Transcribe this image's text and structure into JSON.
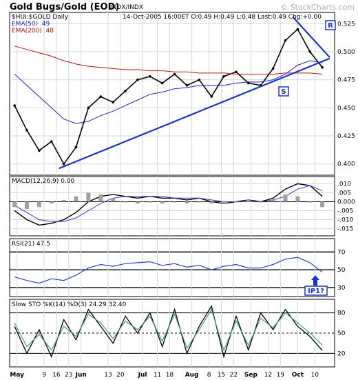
{
  "header": {
    "title": "Gold Bugs/Gold (EOD)",
    "exchange": "INDX/INDX",
    "watermark": "© StockCharts.com",
    "symbol": "$HUI:$GOLD Daily",
    "quote": "14-Oct-2005 16:00ET  O:0.49 H:0.49 L:0.48 Last:0.49 Chg:+0.00"
  },
  "colors": {
    "ema50": "#1f1fcc",
    "ema200": "#b01818",
    "trendline": "#1a33cc",
    "price": "#000000",
    "histogram": "#a0a0a0",
    "signal": "#2a3fd0",
    "sto_d": "#3a9a6a",
    "gridline": "#d8d8d8"
  },
  "annotations": {
    "resistance": "R",
    "support": "S",
    "ip1": "IP1?"
  },
  "chart_data": [
    {
      "type": "line",
      "panel": "price",
      "legend": [
        "EMA(50) .49",
        "EMA(200) .48"
      ],
      "ylim": [
        0.39,
        0.535
      ],
      "yticks": [
        "0.525",
        "0.500",
        "0.475",
        "0.450",
        "0.425",
        "0.400"
      ],
      "ytick_values": [
        0.525,
        0.5,
        0.475,
        0.45,
        0.425,
        0.4
      ],
      "x": [
        0,
        5,
        10,
        15,
        20,
        25,
        30,
        35,
        40,
        45,
        50,
        55,
        60,
        65,
        70,
        75,
        80,
        85,
        90,
        95,
        100,
        105,
        110,
        115,
        120,
        125
      ],
      "series": [
        {
          "name": "$HUI:$GOLD",
          "values": [
            0.452,
            0.43,
            0.412,
            0.42,
            0.4,
            0.415,
            0.45,
            0.46,
            0.455,
            0.465,
            0.475,
            0.478,
            0.472,
            0.48,
            0.47,
            0.475,
            0.46,
            0.478,
            0.482,
            0.472,
            0.47,
            0.485,
            0.51,
            0.52,
            0.5,
            0.486
          ]
        },
        {
          "name": "EMA(50)",
          "values": [
            0.48,
            0.47,
            0.46,
            0.45,
            0.44,
            0.436,
            0.438,
            0.443,
            0.447,
            0.452,
            0.457,
            0.462,
            0.464,
            0.467,
            0.468,
            0.47,
            0.47,
            0.47,
            0.472,
            0.473,
            0.473,
            0.475,
            0.48,
            0.488,
            0.492,
            0.49
          ]
        },
        {
          "name": "EMA(200)",
          "values": [
            0.505,
            0.502,
            0.499,
            0.496,
            0.492,
            0.489,
            0.487,
            0.486,
            0.485,
            0.484,
            0.484,
            0.483,
            0.483,
            0.482,
            0.482,
            0.481,
            0.481,
            0.481,
            0.48,
            0.48,
            0.48,
            0.48,
            0.481,
            0.481,
            0.481,
            0.48
          ]
        }
      ],
      "trendlines": [
        {
          "name": "support",
          "points": [
            [
              18,
              0.396
            ],
            [
              128,
              0.494
            ]
          ]
        },
        {
          "name": "resistance",
          "points": [
            [
              113,
              0.531
            ],
            [
              128,
              0.495
            ]
          ]
        }
      ]
    },
    {
      "type": "line",
      "panel": "macd",
      "legend": "MACD(12,26,9) 0.00",
      "ylim": [
        -0.019,
        0.014
      ],
      "yticks": [
        ".010",
        ".005",
        "0.000",
        "-.005",
        "-.010",
        "-.015"
      ],
      "ytick_values": [
        0.01,
        0.005,
        0.0,
        -0.005,
        -0.01,
        -0.015
      ],
      "x": [
        0,
        5,
        10,
        15,
        20,
        25,
        30,
        35,
        40,
        45,
        50,
        55,
        60,
        65,
        70,
        75,
        80,
        85,
        90,
        95,
        100,
        105,
        110,
        115,
        120,
        125
      ],
      "series": [
        {
          "name": "MACD",
          "values": [
            -0.005,
            -0.01,
            -0.013,
            -0.012,
            -0.01,
            -0.006,
            0.0,
            0.003,
            0.004,
            0.003,
            0.002,
            0.003,
            0.002,
            0.002,
            0.001,
            0.002,
            0.0,
            -0.001,
            0.0,
            0.001,
            0.0,
            0.002,
            0.007,
            0.01,
            0.009,
            0.003
          ]
        },
        {
          "name": "Signal",
          "values": [
            -0.002,
            -0.006,
            -0.01,
            -0.011,
            -0.011,
            -0.009,
            -0.005,
            -0.001,
            0.002,
            0.003,
            0.003,
            0.003,
            0.003,
            0.002,
            0.002,
            0.002,
            0.001,
            0.0,
            0.0,
            0.0,
            0.0,
            0.001,
            0.003,
            0.007,
            0.009,
            0.006
          ]
        }
      ]
    },
    {
      "type": "line",
      "panel": "rsi",
      "legend": "RSI(21) 47.5",
      "ylim": [
        20,
        85
      ],
      "yticks": [
        "70",
        "50",
        "30"
      ],
      "ytick_values": [
        70,
        50,
        30
      ],
      "x": [
        0,
        5,
        10,
        15,
        20,
        25,
        30,
        35,
        40,
        45,
        50,
        55,
        60,
        65,
        70,
        75,
        80,
        85,
        90,
        95,
        100,
        105,
        110,
        115,
        120,
        125
      ],
      "series": [
        {
          "name": "RSI(21)",
          "values": [
            42,
            38,
            35,
            40,
            38,
            44,
            52,
            56,
            54,
            57,
            58,
            59,
            55,
            57,
            53,
            55,
            50,
            54,
            56,
            52,
            52,
            56,
            62,
            64,
            58,
            47.5
          ]
        }
      ]
    },
    {
      "type": "line",
      "panel": "sto",
      "legend": "Slow STO %K(14) %D(3)  24.29  32.40",
      "ylim": [
        0,
        100
      ],
      "yticks": [
        "80",
        "50",
        "20"
      ],
      "ytick_values": [
        80,
        50,
        20
      ],
      "xtick_labels": [
        "May",
        "9",
        "16",
        "23",
        "Jun",
        "13",
        "20",
        "Jul",
        "11",
        "18",
        "Aug",
        "8",
        "15",
        "22",
        "Sep",
        "12",
        "19",
        "Oct",
        "10"
      ],
      "xtick_values": [
        1,
        12,
        17,
        22,
        27,
        38,
        43,
        52,
        58,
        63,
        72,
        79,
        84,
        89,
        96,
        103,
        108,
        115,
        122
      ],
      "x": [
        0,
        5,
        10,
        15,
        20,
        25,
        30,
        35,
        40,
        45,
        50,
        55,
        60,
        65,
        70,
        75,
        80,
        85,
        90,
        95,
        100,
        105,
        110,
        115,
        120,
        125
      ],
      "series": [
        {
          "name": "%K(14)",
          "values": [
            60,
            20,
            55,
            15,
            70,
            40,
            85,
            60,
            35,
            75,
            50,
            80,
            30,
            85,
            20,
            60,
            90,
            15,
            75,
            25,
            80,
            55,
            85,
            60,
            45,
            24.29
          ]
        },
        {
          "name": "%D(3)",
          "values": [
            65,
            30,
            48,
            25,
            60,
            45,
            78,
            65,
            42,
            68,
            55,
            75,
            38,
            78,
            28,
            55,
            85,
            25,
            68,
            32,
            72,
            58,
            80,
            65,
            50,
            32.4
          ]
        }
      ]
    }
  ]
}
